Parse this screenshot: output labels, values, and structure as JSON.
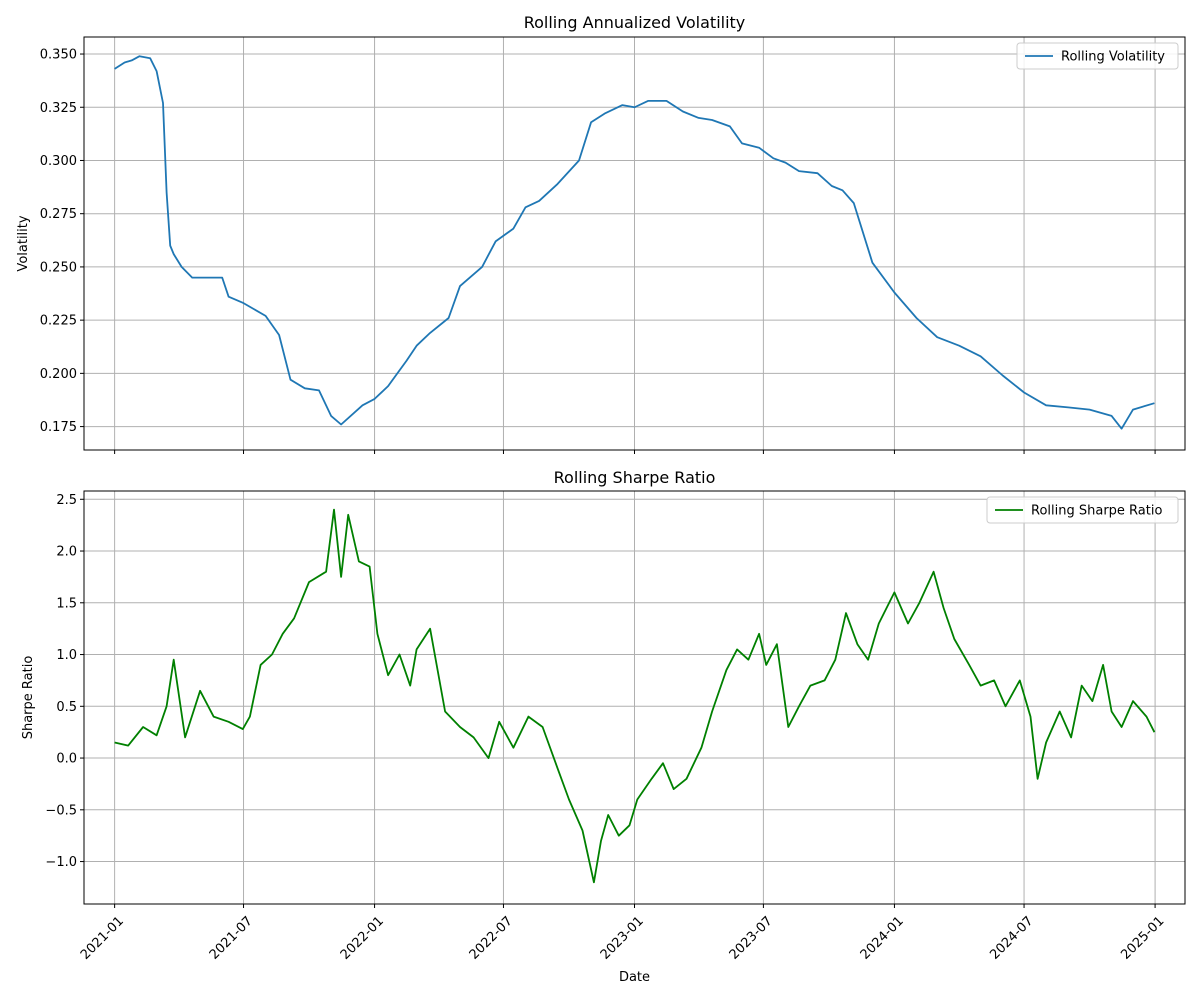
{
  "chart_data": [
    {
      "type": "line",
      "title": "Rolling Annualized Volatility",
      "xlabel": "",
      "ylabel": "Volatility",
      "ylim": [
        0.164,
        0.358
      ],
      "xlim": [
        "2020-11-19",
        "2025-02-12"
      ],
      "yticks": [
        "0.175",
        "0.200",
        "0.225",
        "0.250",
        "0.275",
        "0.300",
        "0.325",
        "0.350"
      ],
      "xticks": [
        "2021-01",
        "2021-07",
        "2022-01",
        "2022-07",
        "2023-01",
        "2023-07",
        "2024-01",
        "2024-07",
        "2025-01"
      ],
      "grid": true,
      "legend_position": "top-right",
      "color": "#1f77b4",
      "series": [
        {
          "name": "Rolling Volatility",
          "x": [
            "2021-01-01",
            "2021-01-15",
            "2021-01-25",
            "2021-02-05",
            "2021-02-20",
            "2021-03-01",
            "2021-03-10",
            "2021-03-15",
            "2021-03-20",
            "2021-03-25",
            "2021-04-05",
            "2021-04-20",
            "2021-05-05",
            "2021-06-01",
            "2021-06-10",
            "2021-07-01",
            "2021-08-01",
            "2021-08-20",
            "2021-09-05",
            "2021-09-25",
            "2021-10-15",
            "2021-11-01",
            "2021-11-15",
            "2021-12-15",
            "2022-01-01",
            "2022-01-20",
            "2022-02-15",
            "2022-03-01",
            "2022-03-20",
            "2022-04-15",
            "2022-05-01",
            "2022-06-01",
            "2022-06-20",
            "2022-07-15",
            "2022-08-01",
            "2022-08-20",
            "2022-09-15",
            "2022-10-15",
            "2022-11-01",
            "2022-11-20",
            "2022-12-15",
            "2023-01-01",
            "2023-01-20",
            "2023-02-15",
            "2023-03-10",
            "2023-04-01",
            "2023-04-20",
            "2023-05-15",
            "2023-06-01",
            "2023-06-25",
            "2023-07-15",
            "2023-08-01",
            "2023-08-20",
            "2023-09-15",
            "2023-10-05",
            "2023-10-20",
            "2023-11-05",
            "2023-12-01",
            "2024-01-01",
            "2024-02-01",
            "2024-03-01",
            "2024-04-01",
            "2024-05-01",
            "2024-06-01",
            "2024-07-01",
            "2024-08-01",
            "2024-09-01",
            "2024-10-01",
            "2024-11-01",
            "2024-11-15",
            "2024-12-01",
            "2024-12-31"
          ],
          "values": [
            0.343,
            0.346,
            0.347,
            0.349,
            0.348,
            0.342,
            0.327,
            0.285,
            0.26,
            0.256,
            0.25,
            0.245,
            0.245,
            0.245,
            0.236,
            0.233,
            0.227,
            0.218,
            0.197,
            0.193,
            0.192,
            0.18,
            0.176,
            0.185,
            0.188,
            0.194,
            0.206,
            0.213,
            0.219,
            0.226,
            0.241,
            0.25,
            0.262,
            0.268,
            0.278,
            0.281,
            0.289,
            0.3,
            0.318,
            0.322,
            0.326,
            0.325,
            0.328,
            0.328,
            0.323,
            0.32,
            0.319,
            0.316,
            0.308,
            0.306,
            0.301,
            0.299,
            0.295,
            0.294,
            0.288,
            0.286,
            0.28,
            0.252,
            0.238,
            0.226,
            0.217,
            0.213,
            0.208,
            0.199,
            0.191,
            0.185,
            0.184,
            0.183,
            0.18,
            0.174,
            0.183,
            0.186
          ]
        }
      ]
    },
    {
      "type": "line",
      "title": "Rolling Sharpe Ratio",
      "xlabel": "Date",
      "ylabel": "Sharpe Ratio",
      "ylim": [
        -1.41,
        2.58
      ],
      "xlim": [
        "2020-11-19",
        "2025-02-12"
      ],
      "yticks": [
        "−1.0",
        "−0.5",
        "0.0",
        "0.5",
        "1.0",
        "1.5",
        "2.0",
        "2.5"
      ],
      "xticks": [
        "2021-01",
        "2021-07",
        "2022-01",
        "2022-07",
        "2023-01",
        "2023-07",
        "2024-01",
        "2024-07",
        "2025-01"
      ],
      "grid": true,
      "legend_position": "top-right",
      "color": "#008000",
      "series": [
        {
          "name": "Rolling Sharpe Ratio",
          "x": [
            "2021-01-01",
            "2021-01-20",
            "2021-02-10",
            "2021-03-01",
            "2021-03-15",
            "2021-03-25",
            "2021-04-10",
            "2021-05-01",
            "2021-05-20",
            "2021-06-10",
            "2021-06-30",
            "2021-07-10",
            "2021-07-25",
            "2021-08-10",
            "2021-08-25",
            "2021-09-10",
            "2021-10-01",
            "2021-10-25",
            "2021-11-05",
            "2021-11-15",
            "2021-11-25",
            "2021-12-10",
            "2021-12-25",
            "2022-01-05",
            "2022-01-20",
            "2022-02-05",
            "2022-02-20",
            "2022-03-01",
            "2022-03-20",
            "2022-04-10",
            "2022-05-01",
            "2022-05-20",
            "2022-06-10",
            "2022-06-25",
            "2022-07-15",
            "2022-08-05",
            "2022-08-25",
            "2022-09-15",
            "2022-10-01",
            "2022-10-20",
            "2022-11-05",
            "2022-11-15",
            "2022-11-25",
            "2022-12-10",
            "2022-12-25",
            "2023-01-05",
            "2023-01-25",
            "2023-02-10",
            "2023-02-25",
            "2023-03-15",
            "2023-04-05",
            "2023-04-20",
            "2023-05-10",
            "2023-05-25",
            "2023-06-10",
            "2023-06-25",
            "2023-07-05",
            "2023-07-20",
            "2023-08-05",
            "2023-08-20",
            "2023-09-05",
            "2023-09-25",
            "2023-10-10",
            "2023-10-25",
            "2023-11-10",
            "2023-11-25",
            "2023-12-10",
            "2024-01-01",
            "2024-01-20",
            "2024-02-05",
            "2024-02-25",
            "2024-03-10",
            "2024-03-25",
            "2024-04-15",
            "2024-05-01",
            "2024-05-20",
            "2024-06-05",
            "2024-06-25",
            "2024-07-10",
            "2024-07-20",
            "2024-08-01",
            "2024-08-20",
            "2024-09-05",
            "2024-09-20",
            "2024-10-05",
            "2024-10-20",
            "2024-11-01",
            "2024-11-15",
            "2024-12-01",
            "2024-12-20",
            "2024-12-31"
          ],
          "values": [
            0.15,
            0.12,
            0.3,
            0.22,
            0.5,
            0.95,
            0.2,
            0.65,
            0.4,
            0.35,
            0.28,
            0.4,
            0.9,
            1.0,
            1.2,
            1.35,
            1.7,
            1.8,
            2.4,
            1.75,
            2.35,
            1.9,
            1.85,
            1.2,
            0.8,
            1.0,
            0.7,
            1.05,
            1.25,
            0.45,
            0.3,
            0.2,
            0.0,
            0.35,
            0.1,
            0.4,
            0.3,
            -0.1,
            -0.4,
            -0.7,
            -1.2,
            -0.8,
            -0.55,
            -0.75,
            -0.65,
            -0.4,
            -0.2,
            -0.05,
            -0.3,
            -0.2,
            0.1,
            0.45,
            0.85,
            1.05,
            0.95,
            1.2,
            0.9,
            1.1,
            0.3,
            0.5,
            0.7,
            0.75,
            0.95,
            1.4,
            1.1,
            0.95,
            1.3,
            1.6,
            1.3,
            1.5,
            1.8,
            1.45,
            1.15,
            0.9,
            0.7,
            0.75,
            0.5,
            0.75,
            0.4,
            -0.2,
            0.15,
            0.45,
            0.2,
            0.7,
            0.55,
            0.9,
            0.45,
            0.3,
            0.55,
            0.4,
            0.25
          ]
        }
      ]
    }
  ]
}
